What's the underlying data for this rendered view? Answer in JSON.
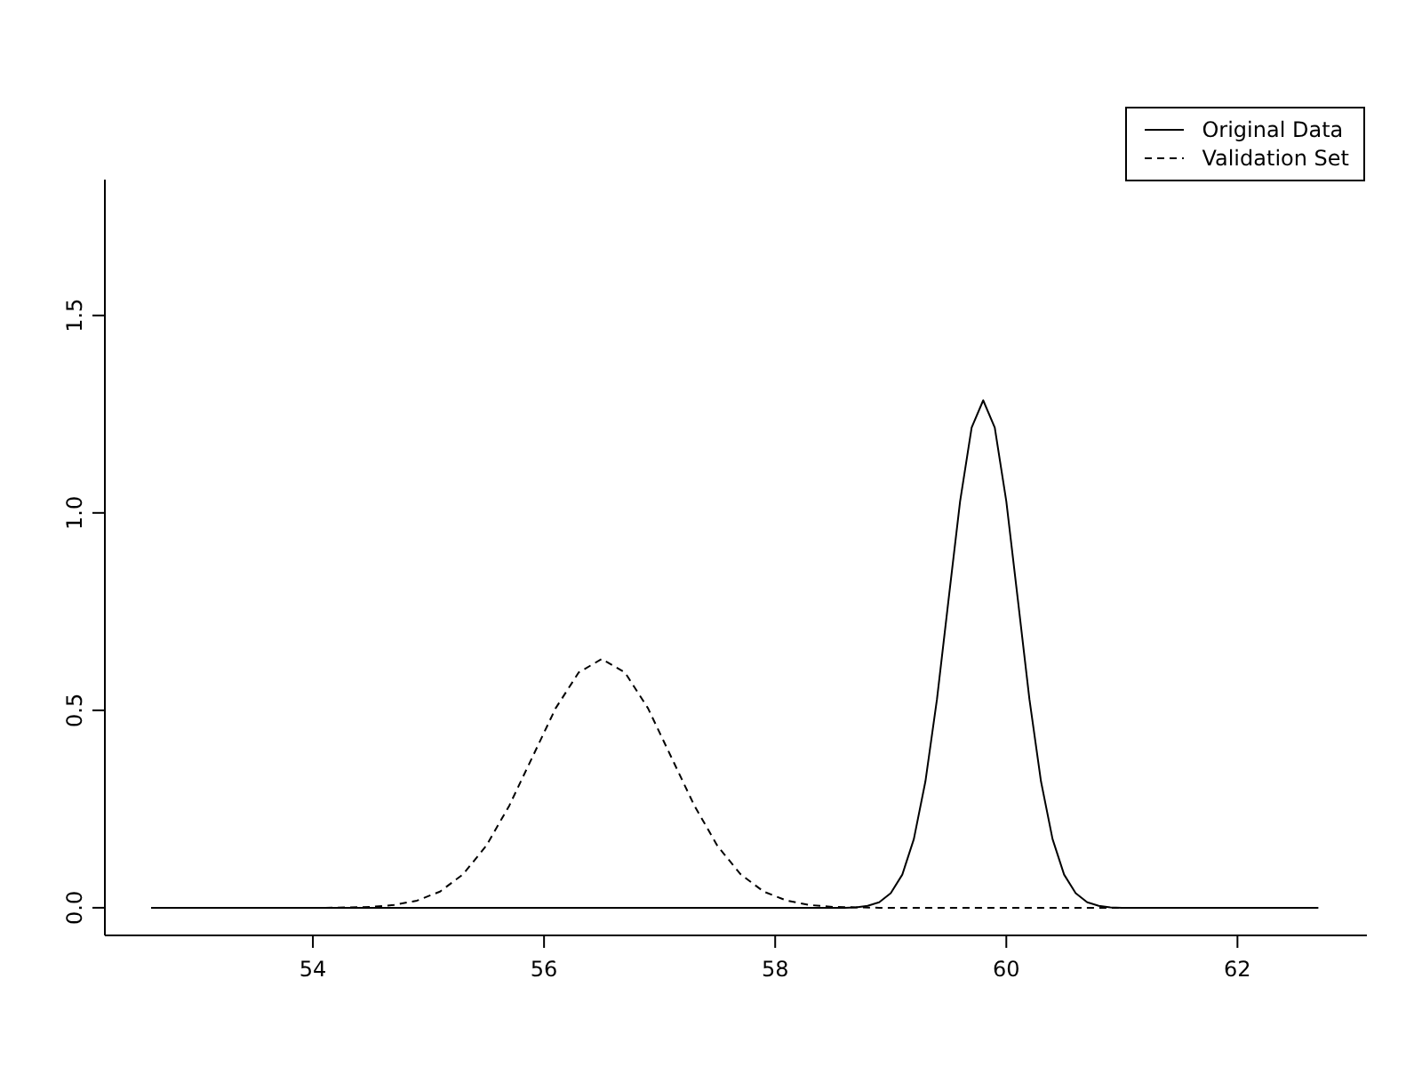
{
  "chart_data": {
    "type": "line",
    "xlim": [
      52.2,
      63.12
    ],
    "ylim": [
      -0.07,
      1.844
    ],
    "xticks": [
      54,
      56,
      58,
      60,
      62
    ],
    "yticks": [
      {
        "value": 0,
        "label": "0.0"
      },
      {
        "value": 0.5,
        "label": "0.5"
      },
      {
        "value": 1,
        "label": "1.0"
      },
      {
        "value": 1.5,
        "label": "1.5"
      }
    ],
    "grid": false,
    "legend": "top right",
    "marker": "none",
    "series": [
      {
        "name": "Original Data",
        "color": "#000000",
        "line_style": "solid",
        "x": [
          52.6,
          58.6,
          58.7,
          58.8,
          58.9,
          59.0,
          59.1,
          59.2,
          59.3,
          59.4,
          59.5,
          59.6,
          59.7,
          59.8,
          59.9,
          60.0,
          60.1,
          60.2,
          60.3,
          60.4,
          60.5,
          60.6,
          60.7,
          60.8,
          60.9,
          61.0,
          62.7
        ],
        "values": [
          0,
          0,
          0.001,
          0.005,
          0.014,
          0.037,
          0.084,
          0.174,
          0.32,
          0.528,
          0.78,
          1.029,
          1.216,
          1.285,
          1.216,
          1.029,
          0.78,
          0.528,
          0.32,
          0.174,
          0.084,
          0.037,
          0.014,
          0.005,
          0.001,
          0,
          0
        ]
      },
      {
        "name": "Validation Set",
        "color": "#000000",
        "line_style": "dashed",
        "x": [
          52.6,
          54.1,
          54.3,
          54.5,
          54.7,
          54.9,
          55.1,
          55.3,
          55.5,
          55.7,
          55.9,
          56.1,
          56.3,
          56.5,
          56.7,
          56.9,
          57.1,
          57.3,
          57.5,
          57.7,
          57.9,
          58.1,
          58.3,
          58.5,
          58.7,
          58.9,
          62.7
        ],
        "values": [
          0,
          0,
          0.001,
          0.002,
          0.007,
          0.018,
          0.041,
          0.085,
          0.157,
          0.259,
          0.382,
          0.505,
          0.596,
          0.63,
          0.596,
          0.505,
          0.382,
          0.259,
          0.157,
          0.085,
          0.041,
          0.018,
          0.007,
          0.002,
          0.001,
          0,
          0
        ]
      }
    ]
  }
}
